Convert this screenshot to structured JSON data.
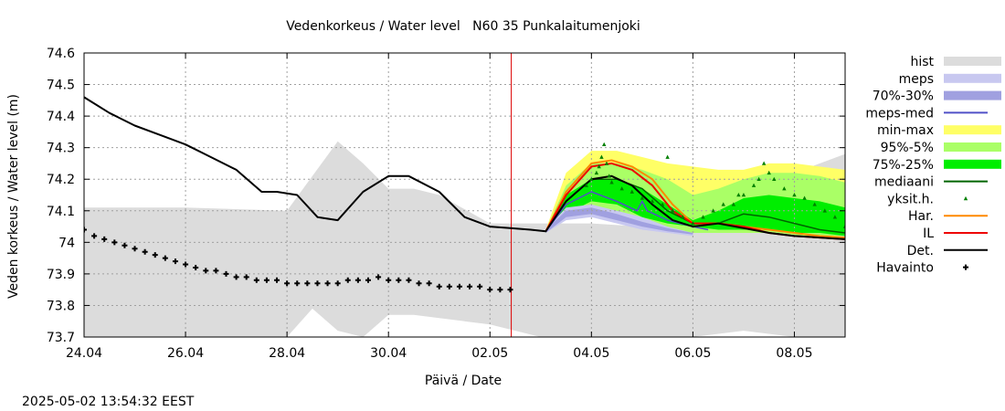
{
  "title": "Vedenkorkeus / Water level   N60 35 Punkalaitumenjoki",
  "timestamp": "2025-05-02 13:54:32 EEST",
  "chart_data": {
    "type": "line",
    "title": "Vedenkorkeus / Water level   N60 35 Punkalaitumenjoki",
    "xlabel": "Päivä / Date",
    "ylabel": "Veden korkeus / Water level (m)",
    "xlim": [
      0,
      15
    ],
    "ylim": [
      73.7,
      74.6
    ],
    "x_ticks": [
      {
        "x": 0,
        "label": "24.04"
      },
      {
        "x": 2,
        "label": "26.04"
      },
      {
        "x": 4,
        "label": "28.04"
      },
      {
        "x": 6,
        "label": "30.04"
      },
      {
        "x": 8,
        "label": "02.05"
      },
      {
        "x": 10,
        "label": "04.05"
      },
      {
        "x": 12,
        "label": "06.05"
      },
      {
        "x": 14,
        "label": "08.05"
      }
    ],
    "y_ticks": [
      73.7,
      73.8,
      73.9,
      74.0,
      74.1,
      74.2,
      74.3,
      74.4,
      74.5,
      74.6
    ],
    "y_tick_labels": [
      "73.7",
      "73.8",
      "73.9",
      "74",
      "74.1",
      "74.2",
      "74.3",
      "74.4",
      "74.5",
      "74.6"
    ],
    "grid": true,
    "forecast_start_x": 8.42,
    "legend_position": "right",
    "legend": [
      {
        "label": "hist",
        "kind": "box",
        "color": "#dcdcdc"
      },
      {
        "label": "meps",
        "kind": "box",
        "color": "#c8c8f0"
      },
      {
        "label": "70%-30%",
        "kind": "box",
        "color": "#a0a0e0"
      },
      {
        "label": "meps-med",
        "kind": "line",
        "color": "#5050c8"
      },
      {
        "label": "min-max",
        "kind": "box",
        "color": "#ffff66"
      },
      {
        "label": "95%-5%",
        "kind": "box",
        "color": "#aaff66"
      },
      {
        "label": "75%-25%",
        "kind": "box",
        "color": "#00ee00"
      },
      {
        "label": "mediaani",
        "kind": "line",
        "color": "#006400"
      },
      {
        "label": "yksit.h.",
        "kind": "marker",
        "color": "#008000"
      },
      {
        "label": "Har.",
        "kind": "line",
        "color": "#ff8800"
      },
      {
        "label": "IL",
        "kind": "line",
        "color": "#ee0000"
      },
      {
        "label": "Det.",
        "kind": "line",
        "color": "#000000"
      },
      {
        "label": "Havainto",
        "kind": "plus",
        "color": "#000000"
      }
    ],
    "series": [
      {
        "name": "hist",
        "kind": "band",
        "color": "#dcdcdc",
        "x": [
          0,
          2,
          4,
          4.5,
          5,
          5.5,
          6,
          6.5,
          7,
          8,
          9,
          10,
          11,
          12,
          13,
          14,
          15
        ],
        "lower": [
          73.7,
          73.7,
          73.7,
          73.79,
          73.72,
          73.7,
          73.77,
          73.77,
          73.76,
          73.74,
          73.7,
          73.7,
          73.7,
          73.7,
          73.72,
          73.7,
          73.7
        ],
        "upper": [
          74.11,
          74.11,
          74.1,
          74.21,
          74.32,
          74.25,
          74.17,
          74.17,
          74.15,
          74.06,
          74.06,
          74.06,
          74.05,
          74.1,
          74.15,
          74.22,
          74.28
        ]
      },
      {
        "name": "min-max",
        "kind": "band",
        "color": "#ffff66",
        "x": [
          9.1,
          9.5,
          10,
          10.5,
          11,
          11.5,
          12,
          12.5,
          13,
          13.5,
          14,
          14.5,
          15
        ],
        "lower": [
          74.03,
          74.08,
          74.1,
          74.09,
          74.06,
          74.04,
          74.03,
          74.03,
          74.03,
          74.03,
          74.02,
          74.02,
          74.02
        ],
        "upper": [
          74.04,
          74.22,
          74.29,
          74.29,
          74.27,
          74.25,
          74.24,
          74.23,
          74.23,
          74.25,
          74.25,
          74.24,
          74.23
        ]
      },
      {
        "name": "95%-5%",
        "kind": "band",
        "color": "#aaff66",
        "x": [
          9.1,
          9.5,
          10,
          10.5,
          11,
          11.5,
          12,
          12.5,
          13,
          13.5,
          14,
          14.5,
          15
        ],
        "lower": [
          74.03,
          74.08,
          74.1,
          74.09,
          74.06,
          74.04,
          74.03,
          74.03,
          74.03,
          74.03,
          74.02,
          74.02,
          74.02
        ],
        "upper": [
          74.04,
          74.18,
          74.25,
          74.25,
          74.23,
          74.2,
          74.15,
          74.17,
          74.2,
          74.22,
          74.22,
          74.21,
          74.19
        ]
      },
      {
        "name": "75%-25%",
        "kind": "band",
        "color": "#00ee00",
        "x": [
          9.1,
          9.5,
          10,
          10.5,
          11,
          11.5,
          12,
          12.5,
          13,
          13.5,
          14,
          14.5,
          15
        ],
        "lower": [
          74.03,
          74.09,
          74.13,
          74.12,
          74.08,
          74.06,
          74.05,
          74.04,
          74.04,
          74.04,
          74.03,
          74.03,
          74.02
        ],
        "upper": [
          74.04,
          74.15,
          74.2,
          74.2,
          74.17,
          74.12,
          74.07,
          74.1,
          74.14,
          74.15,
          74.14,
          74.13,
          74.11
        ]
      },
      {
        "name": "meps",
        "kind": "band",
        "color": "#c8c8f0",
        "x": [
          9.1,
          9.5,
          10,
          10.5,
          11,
          11.5,
          12
        ],
        "lower": [
          74.03,
          74.07,
          74.08,
          74.06,
          74.04,
          74.03,
          74.02
        ],
        "upper": [
          74.04,
          74.11,
          74.12,
          74.1,
          74.08,
          74.05,
          74.03
        ]
      },
      {
        "name": "70%-30%",
        "kind": "band",
        "color": "#a0a0e0",
        "x": [
          9.1,
          9.5,
          10,
          10.5,
          11,
          11.5,
          12
        ],
        "lower": [
          74.03,
          74.08,
          74.09,
          74.07,
          74.05,
          74.035,
          74.025
        ],
        "upper": [
          74.04,
          74.1,
          74.11,
          74.09,
          74.065,
          74.045,
          74.03
        ]
      },
      {
        "name": "meps-med",
        "kind": "line",
        "color": "#5050c8",
        "width": 1.5,
        "x": [
          9.1,
          9.5,
          10,
          10.5,
          10.9,
          11.0,
          11.1,
          11.5,
          12,
          12.3
        ],
        "y": [
          74.035,
          74.12,
          74.16,
          74.13,
          74.1,
          74.13,
          74.1,
          74.07,
          74.05,
          74.04
        ]
      },
      {
        "name": "mediaani",
        "kind": "line",
        "color": "#006400",
        "width": 1.5,
        "x": [
          9.1,
          9.5,
          10,
          10.5,
          11,
          11.5,
          12,
          12.5,
          13,
          13.5,
          14,
          14.5,
          15
        ],
        "y": [
          74.035,
          74.13,
          74.2,
          74.2,
          74.17,
          74.1,
          74.06,
          74.06,
          74.09,
          74.08,
          74.06,
          74.04,
          74.03
        ]
      },
      {
        "name": "Har.",
        "kind": "line",
        "color": "#ff8800",
        "width": 2,
        "x": [
          9.1,
          9.5,
          10,
          10.4,
          10.8,
          11.2,
          11.6,
          12,
          12.5,
          13,
          13.5,
          14,
          14.5,
          15
        ],
        "y": [
          74.035,
          74.16,
          74.25,
          74.26,
          74.24,
          74.2,
          74.12,
          74.06,
          74.06,
          74.05,
          74.04,
          74.03,
          74.02,
          74.015
        ]
      },
      {
        "name": "IL",
        "kind": "line",
        "color": "#ee0000",
        "width": 2,
        "x": [
          9.1,
          9.5,
          10,
          10.4,
          10.8,
          11.2,
          11.6,
          12,
          12.5,
          13,
          13.5,
          14,
          14.5,
          15
        ],
        "y": [
          74.035,
          74.15,
          74.24,
          74.25,
          74.23,
          74.18,
          74.1,
          74.06,
          74.06,
          74.05,
          74.03,
          74.02,
          74.015,
          74.01
        ]
      },
      {
        "name": "Det.",
        "kind": "line",
        "color": "#000000",
        "width": 2,
        "x": [
          0,
          0.5,
          1,
          1.5,
          2,
          2.5,
          3,
          3.5,
          3.8,
          4.2,
          4.6,
          5,
          5.5,
          6,
          6.4,
          7,
          7.5,
          8,
          8.4,
          8.8,
          9.1,
          9.5,
          10,
          10.4,
          10.8,
          11.2,
          11.6,
          12,
          12.5,
          13,
          13.5,
          14,
          14.5,
          15
        ],
        "y": [
          74.46,
          74.41,
          74.37,
          74.34,
          74.31,
          74.27,
          74.23,
          74.16,
          74.16,
          74.15,
          74.08,
          74.07,
          74.16,
          74.21,
          74.21,
          74.16,
          74.08,
          74.05,
          74.045,
          74.04,
          74.035,
          74.13,
          74.2,
          74.21,
          74.18,
          74.12,
          74.07,
          74.05,
          74.06,
          74.045,
          74.03,
          74.02,
          74.015,
          74.01
        ]
      },
      {
        "name": "Havainto",
        "kind": "plus",
        "color": "#000000",
        "x": [
          0,
          0.2,
          0.4,
          0.6,
          0.8,
          1.0,
          1.2,
          1.4,
          1.6,
          1.8,
          2.0,
          2.2,
          2.4,
          2.6,
          2.8,
          3.0,
          3.2,
          3.4,
          3.6,
          3.8,
          4.0,
          4.2,
          4.4,
          4.6,
          4.8,
          5.0,
          5.2,
          5.4,
          5.6,
          5.8,
          6.0,
          6.2,
          6.4,
          6.6,
          6.8,
          7.0,
          7.2,
          7.4,
          7.6,
          7.8,
          8.0,
          8.2,
          8.4
        ],
        "y": [
          74.04,
          74.02,
          74.01,
          74.0,
          73.99,
          73.98,
          73.97,
          73.96,
          73.95,
          73.94,
          73.93,
          73.92,
          73.91,
          73.91,
          73.9,
          73.89,
          73.89,
          73.88,
          73.88,
          73.88,
          73.87,
          73.87,
          73.87,
          73.87,
          73.87,
          73.87,
          73.88,
          73.88,
          73.88,
          73.89,
          73.88,
          73.88,
          73.88,
          73.87,
          73.87,
          73.86,
          73.86,
          73.86,
          73.86,
          73.86,
          73.85,
          73.85,
          73.85
        ]
      },
      {
        "name": "yksit.h.",
        "kind": "scatter",
        "color": "#008000",
        "x": [
          9.9,
          10.0,
          10.1,
          10.15,
          10.2,
          10.25,
          10.3,
          10.35,
          10.4,
          10.6,
          10.8,
          11.0,
          11.2,
          11.4,
          11.6,
          11.8,
          12.0,
          12.2,
          12.4,
          12.6,
          12.8,
          13.0,
          13.2,
          13.3,
          13.5,
          13.6,
          13.8,
          14.0,
          14.2,
          14.4,
          14.6,
          14.8,
          15.0,
          11.5,
          12.9,
          13.4
        ],
        "y": [
          74.18,
          74.2,
          74.22,
          74.24,
          74.27,
          74.31,
          74.25,
          74.21,
          74.19,
          74.17,
          74.16,
          74.14,
          74.13,
          74.12,
          74.1,
          74.08,
          74.06,
          74.08,
          74.1,
          74.12,
          74.12,
          74.15,
          74.18,
          74.2,
          74.22,
          74.2,
          74.17,
          74.15,
          74.14,
          74.12,
          74.1,
          74.08,
          74.05,
          74.27,
          74.15,
          74.25
        ]
      }
    ]
  }
}
